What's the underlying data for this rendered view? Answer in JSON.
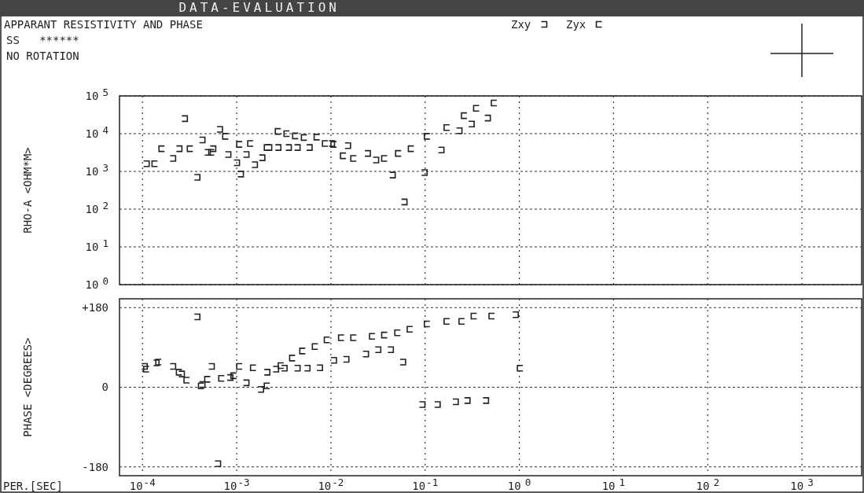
{
  "chart_data": [
    {
      "type": "scatter",
      "title": "DATA-EVALUATION",
      "subtitle": "APPARANT RESISTIVITY AND PHASE",
      "annotations": [
        "SS   ******",
        "NO ROTATION"
      ],
      "ylabel": "RHO-A <OHM*M>",
      "log": "xy",
      "grid": true,
      "legend": "top",
      "tick_labels": "y",
      "xlim": [
        5.7e-05,
        4300
      ],
      "xticks": [
        {
          "value": 0.0001,
          "label": null
        },
        {
          "value": 0.001,
          "label": null
        },
        {
          "value": 0.01,
          "label": null
        },
        {
          "value": 0.1,
          "label": null
        },
        {
          "value": 1,
          "label": null
        },
        {
          "value": 10,
          "label": null
        },
        {
          "value": 100,
          "label": null
        },
        {
          "value": 1000,
          "label": null
        }
      ],
      "ylim": [
        1,
        100000
      ],
      "yticks": [
        {
          "value": 1,
          "label": "10$^{0}$"
        },
        {
          "value": 10,
          "label": "10$^{1}$"
        },
        {
          "value": 100,
          "label": "10$^{2}$"
        },
        {
          "value": 1000,
          "label": "10$^{3}$"
        },
        {
          "value": 10000,
          "label": "10$^{4}$"
        },
        {
          "value": 100000,
          "label": "10$^{5}$"
        }
      ],
      "series": [
        {
          "name": "Zxy",
          "color": "#222222",
          "x": [
            0.00011,
            0.00021,
            0.000245,
            0.00028,
            0.00038,
            0.00043,
            0.00049,
            0.00056,
            0.00066,
            0.00081,
            0.001,
            0.0011,
            0.00126,
            0.00155,
            0.00186,
            0.0022,
            0.00275,
            0.00355,
            0.0044,
            0.0059,
            0.0102,
            0.0151,
            0.0245,
            0.03,
            0.045,
            0.06,
            0.098,
            0.148,
            0.23,
            0.31,
            0.46
          ],
          "values": [
            1600,
            2200,
            4000,
            25000,
            700,
            6800,
            3200,
            4000,
            13000,
            2800,
            1700,
            850,
            2800,
            1500,
            2300,
            4300,
            4300,
            4300,
            4300,
            4300,
            5500,
            4800,
            3000,
            2000,
            800,
            155,
            930,
            3700,
            12000,
            18000,
            26000
          ]
        },
        {
          "name": "Zyx",
          "color": "#222222",
          "x": [
            0.000135,
            0.00016,
            0.00032,
            0.00054,
            0.00076,
            0.00107,
            0.0014,
            0.0021,
            0.00275,
            0.0034,
            0.0042,
            0.0052,
            0.0071,
            0.0087,
            0.0107,
            0.0135,
            0.0174,
            0.037,
            0.052,
            0.071,
            0.105,
            0.17,
            0.26,
            0.35,
            0.54
          ],
          "values": [
            1600,
            4000,
            4000,
            3200,
            8500,
            5200,
            5500,
            4300,
            11500,
            10000,
            8700,
            7900,
            8100,
            5500,
            5200,
            2600,
            2200,
            2200,
            3000,
            4000,
            8500,
            14500,
            30000,
            47000,
            65000
          ]
        }
      ]
    },
    {
      "type": "scatter",
      "xlabel": "PER.[SEC]",
      "ylabel": "PHASE <DEGREES>",
      "log": "x",
      "grid": true,
      "xlim": [
        5.7e-05,
        4300
      ],
      "xticks": [
        {
          "value": 0.0001,
          "label": "10$^{-4}$"
        },
        {
          "value": 0.001,
          "label": "10$^{-3}$"
        },
        {
          "value": 0.01,
          "label": "10$^{-2}$"
        },
        {
          "value": 0.1,
          "label": "10$^{-1}$"
        },
        {
          "value": 1,
          "label": "10$^{0}$"
        },
        {
          "value": 10,
          "label": "10$^{1}$"
        },
        {
          "value": 100,
          "label": "10$^{2}$"
        },
        {
          "value": 1000,
          "label": "10$^{3}$"
        }
      ],
      "ylim": [
        -200,
        200
      ],
      "yticks": [
        {
          "value": 180,
          "label": "+180"
        },
        0,
        -180
      ],
      "series": [
        {
          "color": "#222222",
          "x": [
            0.000105,
            0.00014,
            0.00021,
            0.00026,
            0.00038,
            0.00043,
            0.00054,
            0.00063,
            0.00085,
            0.00126,
            0.0018,
            0.0021,
            0.0026,
            0.0032,
            0.0044,
            0.0056,
            0.0076,
            0.0107,
            0.0145,
            0.0234,
            0.0316,
            0.043,
            0.058,
            0.093,
            0.135,
            0.21,
            0.28,
            0.44,
            0.91
          ],
          "values": [
            47,
            55,
            47,
            30,
            159,
            6,
            47,
            -173,
            22,
            10,
            -5,
            34,
            41,
            43,
            43,
            43,
            44,
            61,
            63,
            75,
            85,
            85,
            57,
            -39,
            -39,
            -33,
            -30,
            -30,
            164
          ]
        },
        {
          "color": "#222222",
          "x": [
            0.00011,
            0.000148,
            0.000245,
            0.000295,
            0.00042,
            0.00049,
            0.00069,
            0.00093,
            0.00107,
            0.0015,
            0.0021,
            0.00295,
            0.0039,
            0.005,
            0.0068,
            0.0091,
            0.0129,
            0.0174,
            0.0275,
            0.037,
            0.051,
            0.069,
            0.105,
            0.17,
            0.245,
            0.33,
            0.51,
            1.02
          ],
          "values": [
            41,
            57,
            34,
            16,
            3,
            18,
            20,
            26,
            47,
            44,
            3,
            49,
            66,
            82,
            92,
            107,
            112,
            112,
            115,
            118,
            123,
            131,
            143,
            149,
            149,
            161,
            161,
            43
          ]
        }
      ]
    }
  ]
}
